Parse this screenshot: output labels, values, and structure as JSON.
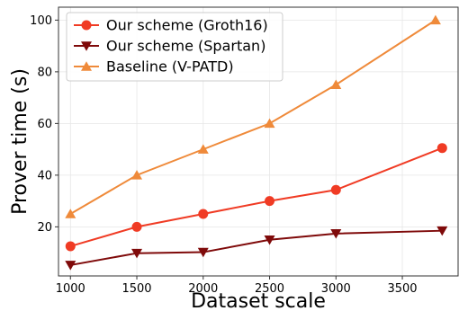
{
  "chart_data": {
    "type": "line",
    "title": "",
    "xlabel": "Dataset scale",
    "ylabel": "Prover time (s)",
    "xlim": [
      910,
      3920
    ],
    "ylim": [
      1,
      105
    ],
    "xticks": [
      1000,
      1500,
      2000,
      2500,
      3000,
      3500
    ],
    "yticks": [
      20,
      40,
      60,
      80,
      100
    ],
    "grid": true,
    "legend_position": "top-left",
    "series": [
      {
        "name": "Our scheme (Groth16)",
        "color": "#f03b24",
        "marker": "circle",
        "x": [
          1000,
          1500,
          2000,
          2500,
          3000,
          3800
        ],
        "y": [
          12.5,
          20,
          25,
          30,
          34.3,
          50.5
        ]
      },
      {
        "name": "Our scheme (Spartan)",
        "color": "#7f0a0a",
        "marker": "triangle-down",
        "x": [
          1000,
          1500,
          2000,
          2500,
          3000,
          3800
        ],
        "y": [
          5.2,
          9.8,
          10.2,
          15,
          17.4,
          18.5
        ]
      },
      {
        "name": "Baseline (V-PATD)",
        "color": "#ef8a3a",
        "marker": "triangle-up",
        "x": [
          1000,
          1500,
          2000,
          2500,
          3000,
          3750
        ],
        "y": [
          25,
          40,
          50,
          60,
          75,
          100
        ]
      }
    ]
  }
}
